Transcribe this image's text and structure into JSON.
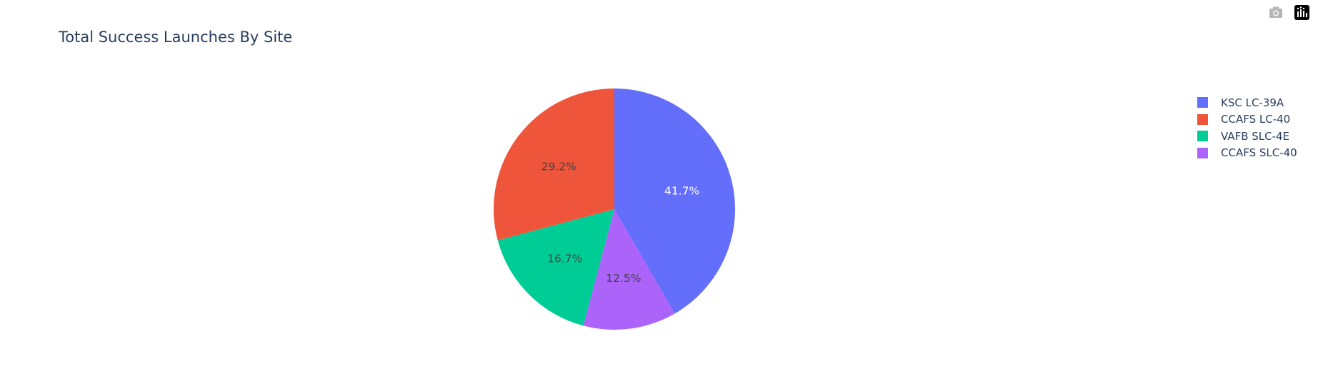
{
  "chart_data": {
    "type": "pie",
    "title": "Total Success Launches By Site",
    "slices": [
      {
        "name": "KSC LC-39A",
        "value": 41.7,
        "label": "41.7%",
        "color": "#636efa",
        "label_color": "#ffffff"
      },
      {
        "name": "CCAFS LC-40",
        "value": 29.2,
        "label": "29.2%",
        "color": "#ef553b",
        "label_color": "#444444"
      },
      {
        "name": "VAFB SLC-4E",
        "value": 16.7,
        "label": "16.7%",
        "color": "#00cc96",
        "label_color": "#444444"
      },
      {
        "name": "CCAFS SLC-40",
        "value": 12.5,
        "label": "12.5%",
        "color": "#ab63fa",
        "label_color": "#444444"
      }
    ],
    "legend_placement": "top-right"
  },
  "drawing_order": [
    0,
    3,
    2,
    1
  ],
  "modebar": {
    "buttons": [
      {
        "name": "camera-icon",
        "color": "#b5b5b5"
      },
      {
        "name": "plotly-logo-icon",
        "color": "#000000"
      }
    ]
  }
}
